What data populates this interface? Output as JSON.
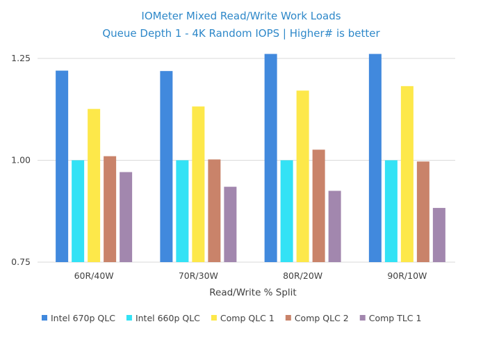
{
  "chart_data": {
    "type": "bar",
    "title": "IOMeter Mixed Read/Write Work Loads",
    "subtitle": "Queue Depth 1 - 4K Random IOPS | Higher# is better",
    "xlabel": "Read/Write % Split",
    "ylabel": "",
    "ylim": [
      0.75,
      1.25
    ],
    "yticks": [
      0.75,
      1.0,
      1.25
    ],
    "ytick_labels": [
      "0.75",
      "1.00",
      "1.25"
    ],
    "grid": true,
    "legend_position": "bottom",
    "categories": [
      "60R/40W",
      "70R/30W",
      "80R/20W",
      "90R/10W"
    ],
    "series": [
      {
        "name": "Intel 670p QLC",
        "color": "#4189dd",
        "values": [
          1.22,
          1.219,
          1.261,
          1.261
        ]
      },
      {
        "name": "Intel 660p QLC",
        "color": "#33e2f5",
        "values": [
          1.0,
          1.0,
          1.0,
          1.0
        ]
      },
      {
        "name": "Comp QLC 1",
        "color": "#fde84a",
        "values": [
          1.126,
          1.132,
          1.171,
          1.182
        ]
      },
      {
        "name": "Comp QLC 2",
        "color": "#c9836a",
        "values": [
          1.01,
          1.002,
          1.026,
          0.997
        ]
      },
      {
        "name": "Comp TLC 1",
        "color": "#a287ae",
        "values": [
          0.971,
          0.935,
          0.925,
          0.883
        ]
      }
    ]
  }
}
